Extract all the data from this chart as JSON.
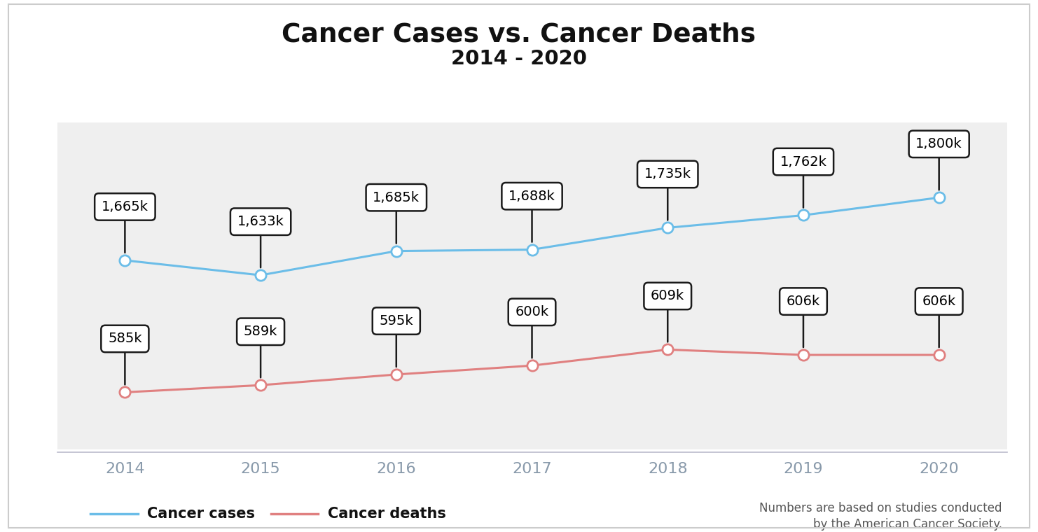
{
  "title_line1": "Cancer Cases vs. Cancer Deaths",
  "title_line2": "2014 - 2020",
  "years": [
    2014,
    2015,
    2016,
    2017,
    2018,
    2019,
    2020
  ],
  "cancer_cases": [
    1665,
    1633,
    1685,
    1688,
    1735,
    1762,
    1800
  ],
  "cancer_deaths": [
    585,
    589,
    595,
    600,
    609,
    606,
    606
  ],
  "cases_labels": [
    "1,665k",
    "1,633k",
    "1,685k",
    "1,688k",
    "1,735k",
    "1,762k",
    "1,800k"
  ],
  "deaths_labels": [
    "585k",
    "589k",
    "595k",
    "600k",
    "609k",
    "606k",
    "606k"
  ],
  "cases_color": "#6BBDE8",
  "deaths_color": "#E08080",
  "background_color": "#EFEFEF",
  "outer_background": "#FFFFFF",
  "annotation_box_color": "#FFFFFF",
  "annotation_box_edge": "#1A1A1A",
  "xlabel_color": "#8899AA",
  "legend_cases_label": "Cancer cases",
  "legend_deaths_label": "Cancer deaths",
  "footnote_line1": "Numbers are based on studies conducted",
  "footnote_line2": "by the American Cancer Society.",
  "border_color": "#CCCCCC"
}
